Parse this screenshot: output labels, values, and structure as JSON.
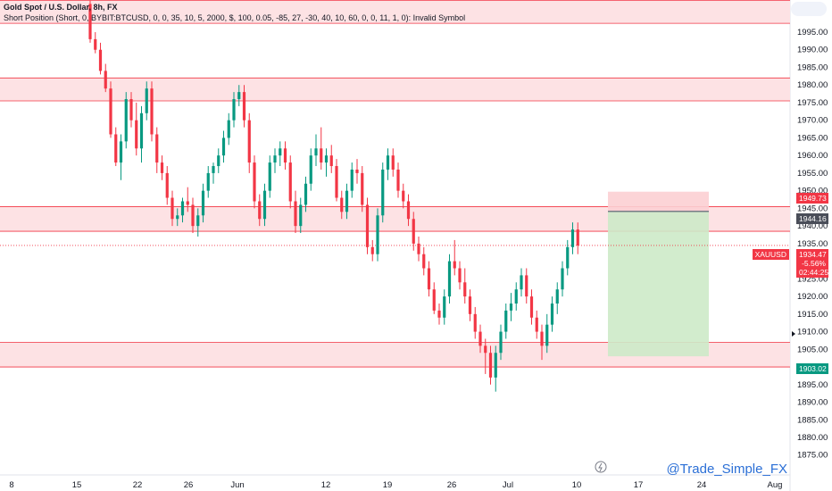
{
  "header": {
    "title": "Gold Spot / U.S. Dollar, 8h, FX",
    "indicator": "Short Position (Short, 0, BYBIT:BTCUSD, 0, 0, 35, 10, 5, 2000, $, 100, 0.05, -85, 27, -30, 40, 10, 60, 0, 0, 11, 1, 0): Invalid Symbol"
  },
  "watermark": "@Trade_Simple_FX",
  "colors": {
    "up": "#089981",
    "down": "#f23645",
    "zone_fill": "#fde2e4",
    "zone_line": "#f23645",
    "target_fill": "#cdeac8",
    "stop_fill": "#fccfd3",
    "axis_text": "#131722"
  },
  "price_axis": {
    "ticks": [
      "1995.00",
      "1990.00",
      "1985.00",
      "1980.00",
      "1975.00",
      "1970.00",
      "1965.00",
      "1960.00",
      "1955.00",
      "1950.00",
      "1945.00",
      "1940.00",
      "1935.00",
      "1930.00",
      "1925.00",
      "1920.00",
      "1915.00",
      "1910.00",
      "1905.00",
      "1900.00",
      "1895.00",
      "1890.00",
      "1885.00",
      "1880.00",
      "1875.00"
    ]
  },
  "time_axis": {
    "labels": [
      "8",
      "15",
      "22",
      "26",
      "Jun",
      "12",
      "19",
      "26",
      "Jul",
      "10",
      "17",
      "24",
      "Aug"
    ]
  },
  "tags": {
    "stop": "1949.73",
    "entry": "1944.16",
    "symbol": "XAUUSD",
    "price": "1934.47",
    "change": "-5.56%",
    "countdown": "02:44:25",
    "target": "1903.02"
  },
  "chart_data": {
    "type": "candlestick",
    "title": "Gold Spot / U.S. Dollar, 8h, FX",
    "ylim": [
      1873,
      2000
    ],
    "x_labels": [
      "8",
      "15",
      "22",
      "26",
      "Jun",
      "12",
      "19",
      "26",
      "Jul",
      "10",
      "17",
      "24",
      "Aug"
    ],
    "last_price": 1934.47,
    "zones": [
      {
        "low": 1997.5,
        "high": 2004
      },
      {
        "low": 1975.5,
        "high": 1982
      },
      {
        "low": 1938.5,
        "high": 1945.5
      },
      {
        "low": 1900.0,
        "high": 1907.0
      }
    ],
    "position": {
      "side": "short",
      "entry": 1944.16,
      "stop": 1949.73,
      "target": 1903.02
    },
    "candles": [
      [
        2003,
        2004,
        1992,
        1993
      ],
      [
        1993,
        1995,
        1989,
        1990
      ],
      [
        1990,
        1992,
        1983,
        1984
      ],
      [
        1984,
        1986,
        1978,
        1979
      ],
      [
        1979,
        1981,
        1965,
        1966
      ],
      [
        1966,
        1968,
        1957,
        1958
      ],
      [
        1958,
        1966,
        1953,
        1964
      ],
      [
        1964,
        1978,
        1962,
        1976
      ],
      [
        1976,
        1978,
        1968,
        1970
      ],
      [
        1970,
        1975,
        1960,
        1962
      ],
      [
        1962,
        1974,
        1958,
        1972
      ],
      [
        1972,
        1981,
        1970,
        1979
      ],
      [
        1979,
        1981,
        1964,
        1966
      ],
      [
        1966,
        1968,
        1955,
        1958
      ],
      [
        1958,
        1960,
        1953,
        1955
      ],
      [
        1955,
        1957,
        1946,
        1948
      ],
      [
        1948,
        1950,
        1940,
        1942
      ],
      [
        1942,
        1945,
        1940,
        1943
      ],
      [
        1943,
        1948,
        1941,
        1947
      ],
      [
        1947,
        1951,
        1944,
        1946
      ],
      [
        1946,
        1948,
        1938,
        1940
      ],
      [
        1940,
        1945,
        1937,
        1943
      ],
      [
        1943,
        1952,
        1941,
        1950
      ],
      [
        1950,
        1957,
        1948,
        1955
      ],
      [
        1955,
        1958,
        1952,
        1957
      ],
      [
        1957,
        1962,
        1955,
        1960
      ],
      [
        1960,
        1967,
        1958,
        1965
      ],
      [
        1965,
        1972,
        1963,
        1970
      ],
      [
        1970,
        1978,
        1968,
        1976
      ],
      [
        1976,
        1980,
        1974,
        1978
      ],
      [
        1978,
        1980,
        1968,
        1970
      ],
      [
        1970,
        1972,
        1955,
        1958
      ],
      [
        1958,
        1960,
        1945,
        1947
      ],
      [
        1947,
        1949,
        1940,
        1942
      ],
      [
        1942,
        1952,
        1940,
        1950
      ],
      [
        1950,
        1960,
        1948,
        1958
      ],
      [
        1958,
        1962,
        1955,
        1960
      ],
      [
        1960,
        1964,
        1957,
        1962
      ],
      [
        1962,
        1964,
        1956,
        1958
      ],
      [
        1958,
        1960,
        1945,
        1947
      ],
      [
        1947,
        1950,
        1938,
        1940
      ],
      [
        1940,
        1948,
        1938,
        1946
      ],
      [
        1946,
        1954,
        1944,
        1952
      ],
      [
        1952,
        1962,
        1950,
        1960
      ],
      [
        1960,
        1966,
        1957,
        1962
      ],
      [
        1962,
        1968,
        1956,
        1958
      ],
      [
        1958,
        1962,
        1954,
        1960
      ],
      [
        1960,
        1963,
        1955,
        1957
      ],
      [
        1957,
        1959,
        1947,
        1948
      ],
      [
        1948,
        1950,
        1942,
        1944
      ],
      [
        1944,
        1952,
        1942,
        1950
      ],
      [
        1950,
        1958,
        1948,
        1956
      ],
      [
        1956,
        1959,
        1952,
        1955
      ],
      [
        1955,
        1957,
        1944,
        1946
      ],
      [
        1946,
        1948,
        1932,
        1934
      ],
      [
        1934,
        1936,
        1930,
        1932
      ],
      [
        1932,
        1945,
        1930,
        1943
      ],
      [
        1943,
        1958,
        1941,
        1956
      ],
      [
        1956,
        1962,
        1953,
        1960
      ],
      [
        1960,
        1962,
        1954,
        1956
      ],
      [
        1956,
        1958,
        1948,
        1950
      ],
      [
        1950,
        1952,
        1945,
        1947
      ],
      [
        1947,
        1949,
        1940,
        1942
      ],
      [
        1942,
        1944,
        1933,
        1935
      ],
      [
        1935,
        1937,
        1930,
        1932
      ],
      [
        1932,
        1934,
        1926,
        1928
      ],
      [
        1928,
        1930,
        1920,
        1922
      ],
      [
        1922,
        1924,
        1915,
        1916
      ],
      [
        1916,
        1918,
        1912,
        1914
      ],
      [
        1914,
        1922,
        1912,
        1920
      ],
      [
        1920,
        1932,
        1918,
        1930
      ],
      [
        1930,
        1936,
        1926,
        1928
      ],
      [
        1928,
        1930,
        1922,
        1924
      ],
      [
        1924,
        1928,
        1918,
        1920
      ],
      [
        1920,
        1922,
        1913,
        1915
      ],
      [
        1915,
        1917,
        1908,
        1910
      ],
      [
        1910,
        1912,
        1904,
        1906
      ],
      [
        1906,
        1908,
        1898,
        1904
      ],
      [
        1904,
        1906,
        1895,
        1897
      ],
      [
        1897,
        1906,
        1893,
        1904
      ],
      [
        1904,
        1912,
        1902,
        1910
      ],
      [
        1910,
        1918,
        1908,
        1916
      ],
      [
        1916,
        1921,
        1913,
        1918
      ],
      [
        1918,
        1924,
        1916,
        1922
      ],
      [
        1922,
        1928,
        1920,
        1926
      ],
      [
        1926,
        1928,
        1918,
        1920
      ],
      [
        1920,
        1922,
        1912,
        1914
      ],
      [
        1914,
        1916,
        1908,
        1910
      ],
      [
        1910,
        1912,
        1902,
        1906
      ],
      [
        1906,
        1915,
        1904,
        1912
      ],
      [
        1912,
        1920,
        1910,
        1918
      ],
      [
        1918,
        1924,
        1915,
        1922
      ],
      [
        1922,
        1930,
        1920,
        1928
      ],
      [
        1928,
        1936,
        1926,
        1934
      ],
      [
        1934,
        1941,
        1932,
        1939
      ],
      [
        1939,
        1941,
        1932,
        1934.47
      ]
    ]
  }
}
